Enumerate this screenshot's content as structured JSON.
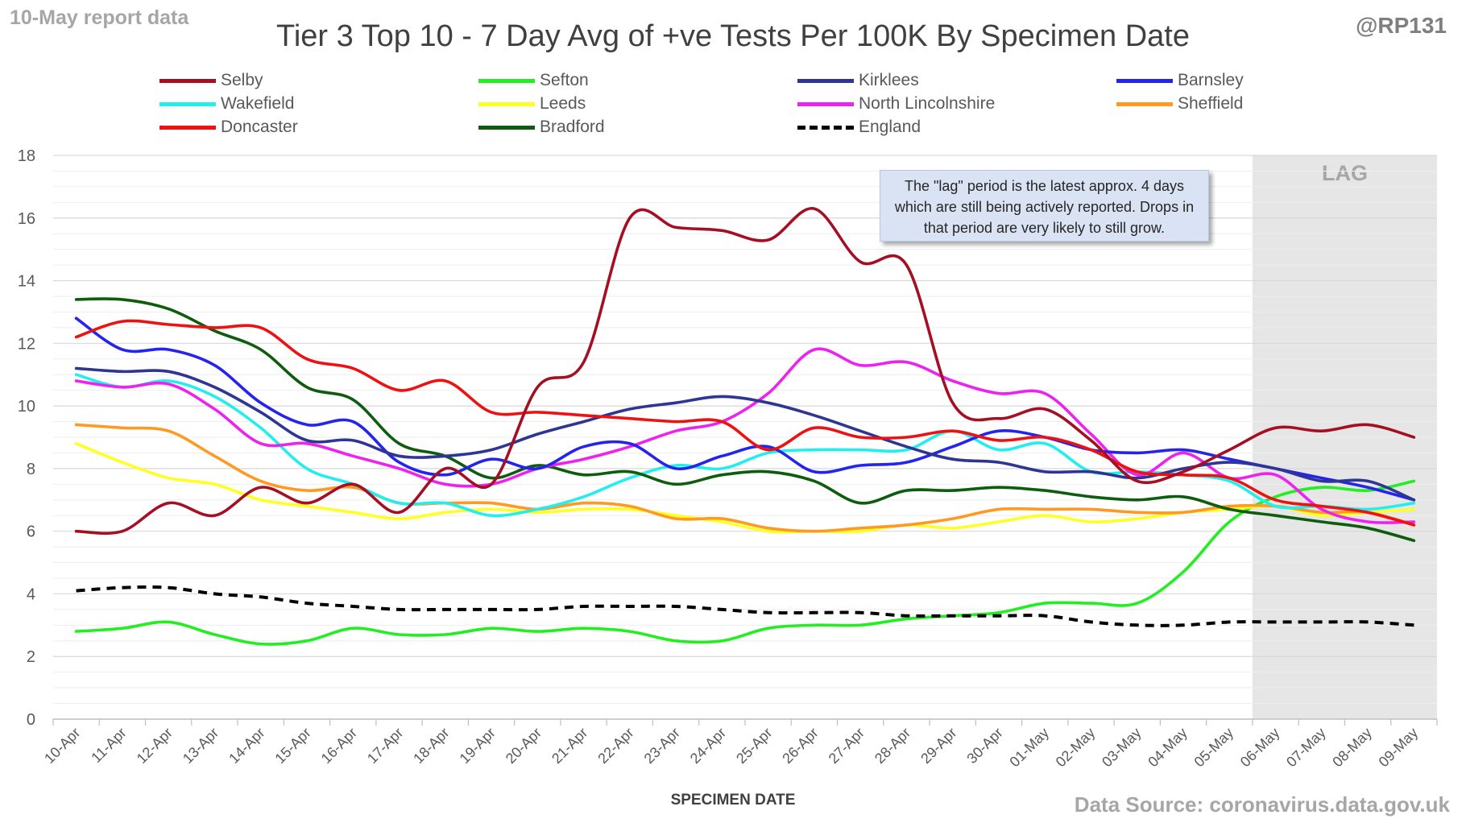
{
  "header": {
    "report_label": "10-May report data",
    "handle": "@RP131",
    "source": "Data Source: coronavirus.data.gov.uk"
  },
  "annotation": "The \"lag\" period is the latest approx. 4 days which are still being actively reported.  Drops in that period are very likely to still grow.",
  "chart_data": {
    "type": "line",
    "title": "Tier 3 Top 10 - 7 Day Avg of +ve Tests Per 100K By Specimen Date",
    "xlabel": "SPECIMEN DATE",
    "ylabel": "",
    "ylim": [
      0,
      18
    ],
    "yticks": [
      0,
      2,
      4,
      6,
      8,
      10,
      12,
      14,
      16,
      18
    ],
    "grid": true,
    "legend_placement": "top",
    "lag_label": "LAG",
    "lag_start": "06-May",
    "categories": [
      "10-Apr",
      "11-Apr",
      "12-Apr",
      "13-Apr",
      "14-Apr",
      "15-Apr",
      "16-Apr",
      "17-Apr",
      "18-Apr",
      "19-Apr",
      "20-Apr",
      "21-Apr",
      "22-Apr",
      "23-Apr",
      "24-Apr",
      "25-Apr",
      "26-Apr",
      "27-Apr",
      "28-Apr",
      "29-Apr",
      "30-Apr",
      "01-May",
      "02-May",
      "03-May",
      "04-May",
      "05-May",
      "06-May",
      "07-May",
      "08-May",
      "09-May"
    ],
    "series": [
      {
        "name": "Selby",
        "color": "#a50f24",
        "dash": false,
        "values": [
          6.0,
          6.0,
          6.9,
          6.5,
          7.4,
          6.9,
          7.5,
          6.6,
          8.0,
          7.5,
          10.6,
          11.4,
          16.0,
          15.7,
          15.6,
          15.3,
          16.3,
          14.6,
          14.5,
          10.1,
          9.6,
          9.9,
          8.9,
          7.6,
          7.9,
          8.6,
          9.3,
          9.2,
          9.4,
          9.0
        ]
      },
      {
        "name": "Sefton",
        "color": "#22ee22",
        "dash": false,
        "values": [
          2.8,
          2.9,
          3.1,
          2.7,
          2.4,
          2.5,
          2.9,
          2.7,
          2.7,
          2.9,
          2.8,
          2.9,
          2.8,
          2.5,
          2.5,
          2.9,
          3.0,
          3.0,
          3.2,
          3.3,
          3.4,
          3.7,
          3.7,
          3.7,
          4.7,
          6.3,
          7.1,
          7.4,
          7.3,
          7.6
        ]
      },
      {
        "name": "Kirklees",
        "color": "#2e3592",
        "dash": false,
        "values": [
          11.2,
          11.1,
          11.1,
          10.6,
          9.8,
          8.9,
          8.9,
          8.4,
          8.4,
          8.6,
          9.1,
          9.5,
          9.9,
          10.1,
          10.3,
          10.1,
          9.7,
          9.2,
          8.7,
          8.3,
          8.2,
          7.9,
          7.9,
          7.7,
          8.0,
          8.2,
          8.0,
          7.6,
          7.6,
          7.0
        ]
      },
      {
        "name": "Barnsley",
        "color": "#2424ee",
        "dash": false,
        "values": [
          12.8,
          11.8,
          11.8,
          11.3,
          10.1,
          9.4,
          9.5,
          8.2,
          7.8,
          8.3,
          8.0,
          8.7,
          8.8,
          8.0,
          8.4,
          8.7,
          7.9,
          8.1,
          8.2,
          8.7,
          9.2,
          9.0,
          8.6,
          8.5,
          8.6,
          8.3,
          8.0,
          7.7,
          7.4,
          7.0
        ]
      },
      {
        "name": "Wakefield",
        "color": "#22eeee",
        "dash": false,
        "values": [
          11.0,
          10.6,
          10.8,
          10.3,
          9.3,
          8.0,
          7.5,
          6.9,
          6.9,
          6.5,
          6.7,
          7.1,
          7.7,
          8.1,
          8.0,
          8.5,
          8.6,
          8.6,
          8.6,
          9.2,
          8.6,
          8.8,
          7.9,
          7.9,
          7.8,
          7.6,
          6.8,
          6.8,
          6.7,
          6.9
        ]
      },
      {
        "name": "Leeds",
        "color": "#ffff22",
        "dash": false,
        "values": [
          8.8,
          8.2,
          7.7,
          7.5,
          7.0,
          6.8,
          6.6,
          6.4,
          6.6,
          6.7,
          6.6,
          6.7,
          6.7,
          6.5,
          6.3,
          6.0,
          6.0,
          6.0,
          6.2,
          6.1,
          6.3,
          6.5,
          6.3,
          6.4,
          6.6,
          6.7,
          6.8,
          6.5,
          6.6,
          6.7
        ]
      },
      {
        "name": "North Lincolnshire",
        "color": "#ee22ee",
        "dash": false,
        "values": [
          10.8,
          10.6,
          10.7,
          9.9,
          8.8,
          8.8,
          8.4,
          8.0,
          7.5,
          7.5,
          8.0,
          8.3,
          8.7,
          9.2,
          9.5,
          10.4,
          11.8,
          11.3,
          11.4,
          10.8,
          10.4,
          10.4,
          9.1,
          7.8,
          8.5,
          7.7,
          7.8,
          6.7,
          6.3,
          6.3
        ]
      },
      {
        "name": "Sheffield",
        "color": "#ff9922",
        "dash": false,
        "values": [
          9.4,
          9.3,
          9.2,
          8.4,
          7.6,
          7.3,
          7.4,
          6.9,
          6.9,
          6.9,
          6.7,
          6.9,
          6.8,
          6.4,
          6.4,
          6.1,
          6.0,
          6.1,
          6.2,
          6.4,
          6.7,
          6.7,
          6.7,
          6.6,
          6.6,
          6.8,
          6.8,
          6.6,
          6.6,
          6.2
        ]
      },
      {
        "name": "Doncaster",
        "color": "#ee1111",
        "dash": false,
        "values": [
          12.2,
          12.7,
          12.6,
          12.5,
          12.5,
          11.5,
          11.2,
          10.5,
          10.8,
          9.8,
          9.8,
          9.7,
          9.6,
          9.5,
          9.5,
          8.6,
          9.3,
          9.0,
          9.0,
          9.2,
          8.9,
          9.0,
          8.6,
          7.9,
          7.8,
          7.7,
          7.0,
          6.8,
          6.6,
          6.2
        ]
      },
      {
        "name": "Bradford",
        "color": "#0e5c0e",
        "dash": false,
        "values": [
          13.4,
          13.4,
          13.1,
          12.4,
          11.8,
          10.6,
          10.2,
          8.8,
          8.4,
          7.7,
          8.1,
          7.8,
          7.9,
          7.5,
          7.8,
          7.9,
          7.6,
          6.9,
          7.3,
          7.3,
          7.4,
          7.3,
          7.1,
          7.0,
          7.1,
          6.7,
          6.5,
          6.3,
          6.1,
          5.7
        ]
      },
      {
        "name": "England",
        "color": "#000000",
        "dash": true,
        "values": [
          4.1,
          4.2,
          4.2,
          4.0,
          3.9,
          3.7,
          3.6,
          3.5,
          3.5,
          3.5,
          3.5,
          3.6,
          3.6,
          3.6,
          3.5,
          3.4,
          3.4,
          3.4,
          3.3,
          3.3,
          3.3,
          3.3,
          3.1,
          3.0,
          3.0,
          3.1,
          3.1,
          3.1,
          3.1,
          3.0
        ]
      }
    ]
  }
}
